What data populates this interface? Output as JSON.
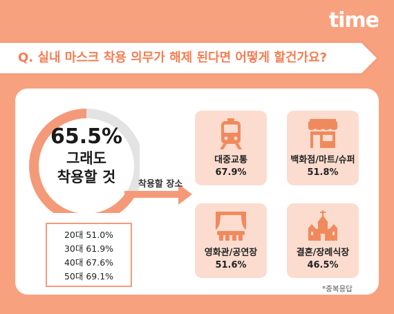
{
  "logo": "time",
  "question": "Q. 실내 마스크 착용 의무가 해제 된다면 어떻게 할건가요?",
  "colors": {
    "accent": "#f59a78",
    "card_bg": "#fbdccf",
    "icon": "#f08a5d",
    "ring_bg": "#e3e3e3"
  },
  "chart_data": [
    {
      "type": "pie",
      "values": [
        65.5
      ],
      "value_label": "65.5%",
      "label": "그래도 착용할 것",
      "label_lines": [
        "그래도",
        "착용할 것"
      ]
    },
    {
      "type": "table",
      "rows": [
        {
          "age": "20대",
          "value": 51.0,
          "text": "20대 51.0%"
        },
        {
          "age": "30대",
          "value": 61.9,
          "text": "30대 61.9%"
        },
        {
          "age": "40대",
          "value": 67.6,
          "text": "40대 67.6%"
        },
        {
          "age": "50대",
          "value": 69.1,
          "text": "50대 69.1%"
        }
      ]
    },
    {
      "type": "table",
      "title": "착용할 장소",
      "categories": [
        "대중교통",
        "백화점/마트/슈퍼",
        "영화관/공연장",
        "결혼/장례식장"
      ],
      "values": [
        67.9,
        51.8,
        51.6,
        46.5
      ],
      "value_labels": [
        "67.9%",
        "51.8%",
        "51.6%",
        "46.5%"
      ],
      "icons": [
        "train-icon",
        "store-icon",
        "theater-icon",
        "chapel-icon"
      ]
    }
  ],
  "note": "*중복응답"
}
